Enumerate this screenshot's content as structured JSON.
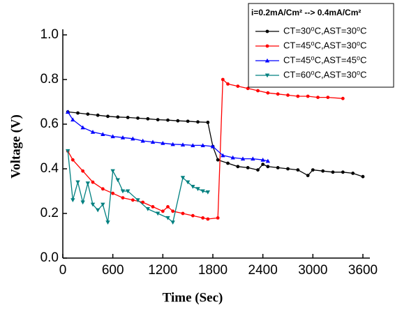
{
  "chart_data": {
    "type": "line",
    "x_label": "Time (Sec)",
    "y_label": "Voltage (V)",
    "legend_title": "i=0.2mA/Cm² --> 0.4mA/Cm²",
    "legend": "upper right",
    "xlim": [
      0,
      3600
    ],
    "xticks": [
      0,
      600,
      1200,
      1800,
      2400,
      3000,
      3600
    ],
    "ylim": [
      0,
      1
    ],
    "yticks": [
      {
        "value": 0,
        "label": "0.0"
      },
      0.2,
      0.4,
      0.6,
      0.8,
      {
        "value": 1,
        "label": "1.0"
      }
    ],
    "series": [
      {
        "name": "CT=30⁰C,AST=30⁰C",
        "color": "#000000",
        "marker": "circle",
        "x": [
          60,
          180,
          300,
          420,
          540,
          660,
          780,
          900,
          1020,
          1140,
          1260,
          1380,
          1500,
          1620,
          1740,
          1800,
          1860,
          1980,
          2100,
          2220,
          2340,
          2400,
          2460,
          2580,
          2700,
          2820,
          2940,
          3000,
          3120,
          3240,
          3360,
          3480,
          3600
        ],
        "values": [
          0.655,
          0.65,
          0.645,
          0.64,
          0.635,
          0.632,
          0.63,
          0.627,
          0.624,
          0.62,
          0.618,
          0.615,
          0.613,
          0.61,
          0.608,
          0.5,
          0.44,
          0.425,
          0.41,
          0.405,
          0.395,
          0.42,
          0.41,
          0.405,
          0.4,
          0.395,
          0.37,
          0.395,
          0.39,
          0.385,
          0.385,
          0.38,
          0.365
        ]
      },
      {
        "name": "CT=45⁰C,AST=30⁰C",
        "color": "#ff0000",
        "marker": "circle",
        "x": [
          60,
          120,
          240,
          360,
          480,
          600,
          720,
          840,
          960,
          1080,
          1200,
          1260,
          1320,
          1440,
          1560,
          1680,
          1740,
          1860,
          1920,
          1980,
          2100,
          2220,
          2340,
          2460,
          2580,
          2700,
          2820,
          2940,
          3060,
          3180,
          3360
        ],
        "values": [
          0.48,
          0.44,
          0.39,
          0.34,
          0.31,
          0.29,
          0.27,
          0.26,
          0.25,
          0.23,
          0.21,
          0.23,
          0.21,
          0.2,
          0.19,
          0.18,
          0.175,
          0.18,
          0.8,
          0.78,
          0.77,
          0.76,
          0.75,
          0.74,
          0.735,
          0.73,
          0.725,
          0.725,
          0.72,
          0.72,
          0.715
        ]
      },
      {
        "name": "CT=45⁰C,AST=45⁰C",
        "color": "#0000ff",
        "marker": "triangle-up",
        "x": [
          60,
          120,
          240,
          360,
          480,
          600,
          720,
          840,
          960,
          1080,
          1200,
          1320,
          1440,
          1560,
          1680,
          1800,
          1920,
          2040,
          2160,
          2280,
          2400,
          2460
        ],
        "values": [
          0.655,
          0.62,
          0.585,
          0.565,
          0.555,
          0.545,
          0.54,
          0.535,
          0.525,
          0.52,
          0.515,
          0.51,
          0.508,
          0.505,
          0.505,
          0.5,
          0.46,
          0.45,
          0.445,
          0.445,
          0.44,
          0.435
        ]
      },
      {
        "name": "CT=60⁰C,AST=30⁰C",
        "color": "#008080",
        "marker": "triangle-down",
        "x": [
          60,
          120,
          180,
          240,
          300,
          360,
          420,
          480,
          540,
          600,
          660,
          720,
          780,
          900,
          1020,
          1140,
          1260,
          1320,
          1440,
          1500,
          1560,
          1620,
          1680,
          1740
        ],
        "values": [
          0.48,
          0.26,
          0.34,
          0.25,
          0.335,
          0.24,
          0.215,
          0.24,
          0.16,
          0.39,
          0.35,
          0.3,
          0.3,
          0.26,
          0.22,
          0.2,
          0.18,
          0.16,
          0.36,
          0.34,
          0.32,
          0.31,
          0.3,
          0.295
        ]
      }
    ]
  }
}
